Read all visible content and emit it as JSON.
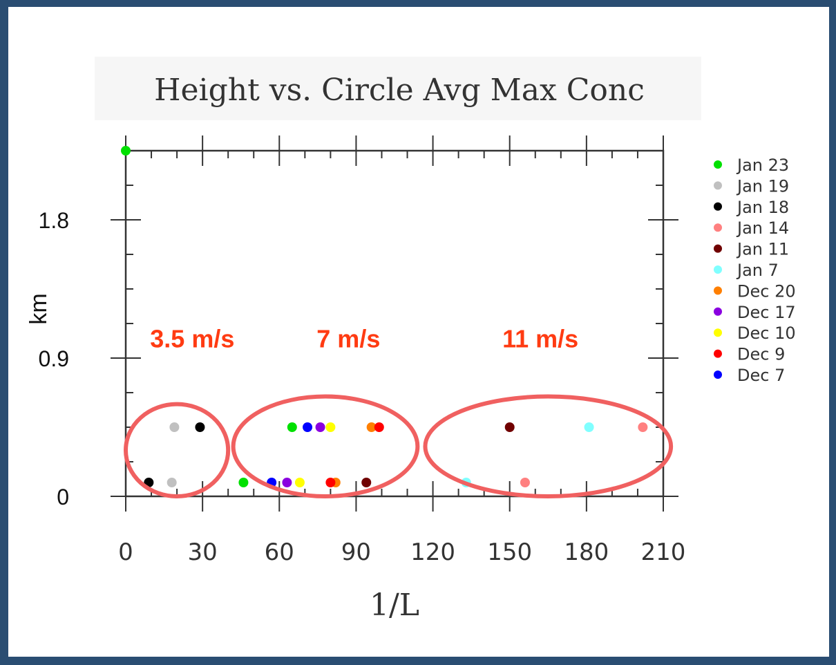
{
  "chart_data": {
    "type": "scatter",
    "title": "Height vs. Circle Avg Max Conc",
    "xlabel": "1/L",
    "ylabel": "km",
    "xlim": [
      0,
      210
    ],
    "ylim": [
      0,
      2.25
    ],
    "x_ticks": [
      0,
      30,
      60,
      90,
      120,
      150,
      180,
      210
    ],
    "y_ticks": [
      0,
      0.9,
      1.8
    ],
    "y_tick_labels": [
      "0",
      "0.9",
      "1.8"
    ],
    "legend_position": "right",
    "series": [
      {
        "name": "Jan 23",
        "color": "#00e000",
        "points": [
          [
            0,
            2.25
          ],
          [
            46,
            0.09
          ],
          [
            65,
            0.45
          ]
        ]
      },
      {
        "name": "Jan 19",
        "color": "#c0c0c0",
        "points": [
          [
            19,
            0.45
          ],
          [
            18,
            0.09
          ]
        ]
      },
      {
        "name": "Jan 18",
        "color": "#000000",
        "points": [
          [
            29,
            0.45
          ],
          [
            9,
            0.09
          ]
        ]
      },
      {
        "name": "Jan 14",
        "color": "#ff8080",
        "points": [
          [
            202,
            0.45
          ],
          [
            156,
            0.09
          ]
        ]
      },
      {
        "name": "Jan 11",
        "color": "#700000",
        "points": [
          [
            150,
            0.45
          ],
          [
            94,
            0.09
          ]
        ]
      },
      {
        "name": "Jan 7",
        "color": "#80ffff",
        "points": [
          [
            181,
            0.45
          ],
          [
            133,
            0.09
          ]
        ]
      },
      {
        "name": "Dec 20",
        "color": "#ff7f00",
        "points": [
          [
            96,
            0.45
          ],
          [
            82,
            0.09
          ]
        ]
      },
      {
        "name": "Dec 17",
        "color": "#8a00e0",
        "points": [
          [
            76,
            0.45
          ],
          [
            63,
            0.09
          ]
        ]
      },
      {
        "name": "Dec 10",
        "color": "#ffff00",
        "points": [
          [
            80,
            0.45
          ],
          [
            68,
            0.09
          ]
        ]
      },
      {
        "name": "Dec 9",
        "color": "#ff0000",
        "points": [
          [
            99,
            0.45
          ],
          [
            80,
            0.09
          ]
        ]
      },
      {
        "name": "Dec 7",
        "color": "#0000ff",
        "points": [
          [
            71,
            0.45
          ],
          [
            57,
            0.09
          ]
        ]
      }
    ],
    "annotations": [
      {
        "text": "3.5 m/s",
        "x": 26,
        "y": 0.97
      },
      {
        "text": "7 m/s",
        "x": 87,
        "y": 0.97
      },
      {
        "text": "11 m/s",
        "x": 162,
        "y": 0.97
      }
    ],
    "grouping_ellipses": [
      {
        "x": [
          0,
          40
        ],
        "y": [
          0,
          0.6
        ],
        "color": "#f06060"
      },
      {
        "x": [
          42,
          114
        ],
        "y": [
          0,
          0.65
        ],
        "color": "#f06060"
      },
      {
        "x": [
          117,
          213
        ],
        "y": [
          0,
          0.65
        ],
        "color": "#f06060"
      }
    ]
  }
}
